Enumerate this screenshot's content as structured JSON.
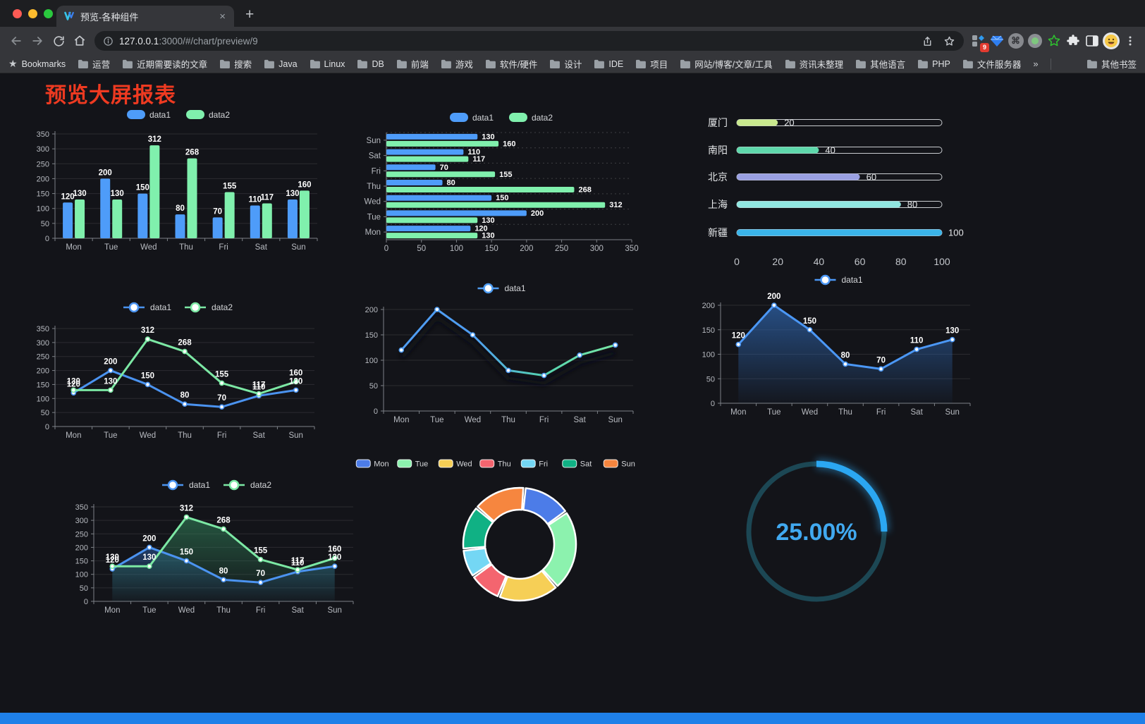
{
  "browser": {
    "tab": {
      "title": "预览-各种组件",
      "close_label": "×",
      "new_tab_label": "+"
    },
    "url": {
      "host": "127.0.0.1",
      "path": ":3000/#/chart/preview/9"
    },
    "extension_badge": "9",
    "bookmarks_label": "Bookmarks",
    "bookmark_folders": [
      "运营",
      "近期需要读的文章",
      "搜索",
      "Java",
      "Linux",
      "DB",
      "前端",
      "游戏",
      "软件/硬件",
      "设计",
      "IDE",
      "项目",
      "网站/博客/文章/工具",
      "资讯未整理",
      "其他语言",
      "PHP",
      "文件服务器"
    ],
    "bookmarks_overflow": "»",
    "other_bookmarks": "其他书签"
  },
  "page": {
    "title": "预览大屏报表",
    "title_color": "#ee3a21"
  },
  "chart_data": [
    {
      "id": "bar-grouped",
      "type": "bar",
      "categories": [
        "Mon",
        "Tue",
        "Wed",
        "Thu",
        "Fri",
        "Sat",
        "Sun"
      ],
      "series": [
        {
          "name": "data1",
          "color": "#4e9cf9",
          "values": [
            120,
            200,
            150,
            80,
            70,
            110,
            130
          ]
        },
        {
          "name": "data2",
          "color": "#80f0ad",
          "values": [
            130,
            130,
            312,
            268,
            155,
            117,
            160
          ]
        }
      ],
      "ylim": [
        0,
        350
      ],
      "ytick": 50,
      "legend": "top",
      "value_labels": true,
      "grid": true
    },
    {
      "id": "bar-horizontal",
      "type": "bar",
      "orientation": "horizontal",
      "categories": [
        "Mon",
        "Tue",
        "Wed",
        "Thu",
        "Fri",
        "Sat",
        "Sun"
      ],
      "series": [
        {
          "name": "data1",
          "color": "#4e9cf9",
          "values": [
            120,
            200,
            150,
            80,
            70,
            110,
            130
          ]
        },
        {
          "name": "data2",
          "color": "#80f0ad",
          "values": [
            130,
            130,
            312,
            268,
            155,
            117,
            160
          ]
        }
      ],
      "xlim": [
        0,
        350
      ],
      "xtick": 50,
      "legend": "top",
      "value_labels": true,
      "grid": true
    },
    {
      "id": "progress",
      "type": "bar",
      "subtype": "progress-pills",
      "rows": [
        {
          "label": "厦门",
          "value": 20,
          "color": "#c9e98e"
        },
        {
          "label": "南阳",
          "value": 40,
          "color": "#5ed8ab"
        },
        {
          "label": "北京",
          "value": 60,
          "color": "#9aa0e2"
        },
        {
          "label": "上海",
          "value": 80,
          "color": "#90e7e1"
        },
        {
          "label": "新疆",
          "value": 100,
          "color": "#3ab4e9"
        }
      ],
      "xlim": [
        0,
        100
      ],
      "xticks": [
        0,
        20,
        40,
        60,
        80,
        100
      ]
    },
    {
      "id": "line-two",
      "type": "line",
      "categories": [
        "Mon",
        "Tue",
        "Wed",
        "Thu",
        "Fri",
        "Sat",
        "Sun"
      ],
      "series": [
        {
          "name": "data1",
          "color": "#4b93f0",
          "values": [
            120,
            200,
            150,
            80,
            70,
            110,
            130
          ]
        },
        {
          "name": "data2",
          "color": "#7ce8a4",
          "values": [
            130,
            130,
            312,
            268,
            155,
            117,
            160
          ]
        }
      ],
      "ylim": [
        0,
        350
      ],
      "ytick": 50,
      "legend": "top",
      "value_labels": true,
      "grid": true
    },
    {
      "id": "line-gradient",
      "type": "line",
      "shadow": true,
      "categories": [
        "Mon",
        "Tue",
        "Wed",
        "Thu",
        "Fri",
        "Sat",
        "Sun"
      ],
      "series": [
        {
          "name": "data1",
          "color": "#4f9df2",
          "gradient": [
            "#4f9df2",
            "#4f9df2",
            "#55d3b0",
            "#7ae8a6"
          ],
          "values": [
            120,
            200,
            150,
            80,
            70,
            110,
            130
          ]
        }
      ],
      "ylim": [
        0,
        200
      ],
      "ytick": 50,
      "legend": "top",
      "value_labels": false,
      "grid": true
    },
    {
      "id": "area-single",
      "type": "area",
      "categories": [
        "Mon",
        "Tue",
        "Wed",
        "Thu",
        "Fri",
        "Sat",
        "Sun"
      ],
      "series": [
        {
          "name": "data1",
          "color": "#4b97f5",
          "fill": [
            "rgba(47,103,177,0.70)",
            "rgba(47,103,177,0.04)"
          ],
          "values": [
            120,
            200,
            150,
            80,
            70,
            110,
            130
          ]
        }
      ],
      "ylim": [
        0,
        200
      ],
      "ytick": 50,
      "legend": "top",
      "value_labels": true,
      "grid": true
    },
    {
      "id": "area-two",
      "type": "area",
      "categories": [
        "Mon",
        "Tue",
        "Wed",
        "Thu",
        "Fri",
        "Sat",
        "Sun"
      ],
      "series": [
        {
          "name": "data1",
          "color": "#4b93f0",
          "fill": [
            "rgba(43,98,176,0.50)",
            "rgba(43,98,176,0.03)"
          ],
          "values": [
            120,
            200,
            150,
            80,
            70,
            110,
            130
          ]
        },
        {
          "name": "data2",
          "color": "#7ce8a4",
          "fill": [
            "rgba(52,140,96,0.55)",
            "rgba(52,140,96,0.03)"
          ],
          "values": [
            130,
            130,
            312,
            268,
            155,
            117,
            160
          ]
        }
      ],
      "ylim": [
        0,
        350
      ],
      "ytick": 50,
      "legend": "top",
      "value_labels": true,
      "grid": true
    },
    {
      "id": "donut",
      "type": "pie",
      "inner_ratio": 0.61,
      "legend": "top",
      "slices": [
        {
          "label": "Mon",
          "value": 120,
          "color": "#4c7ce8"
        },
        {
          "label": "Tue",
          "value": 200,
          "color": "#8cf2ae"
        },
        {
          "label": "Wed",
          "value": 150,
          "color": "#f6cf56"
        },
        {
          "label": "Thu",
          "value": 80,
          "color": "#f4656f"
        },
        {
          "label": "Fri",
          "value": 70,
          "color": "#74d7f4"
        },
        {
          "label": "Sat",
          "value": 110,
          "color": "#10b184"
        },
        {
          "label": "Sun",
          "value": 130,
          "color": "#f6863f"
        }
      ]
    },
    {
      "id": "gauge",
      "type": "gauge",
      "value": 25,
      "max": 100,
      "label": "25.00%",
      "color": "#2ba7f2",
      "track_color": "#1c4754",
      "text_color": "#41a9f0"
    }
  ]
}
